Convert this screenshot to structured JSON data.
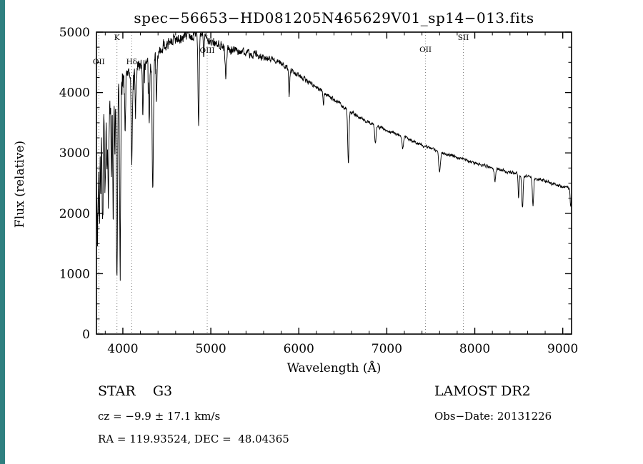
{
  "page": {
    "background": "#ffffff",
    "accent_strip_color": "#2f8080"
  },
  "chart_data": {
    "type": "line",
    "title": "spec−56653−HD081205N465629V01_sp14−013.fits",
    "xlabel": "Wavelength (Å)",
    "ylabel": "Flux (relative)",
    "xlim": [
      3700,
      9100
    ],
    "ylim": [
      0,
      5000
    ],
    "x_ticks": [
      4000,
      5000,
      6000,
      7000,
      8000,
      9000
    ],
    "y_ticks": [
      0,
      1000,
      2000,
      3000,
      4000,
      5000
    ],
    "x_minor_step": 200,
    "y_minor_step": 250,
    "grid": false,
    "legend": "none",
    "line_color": "#000000",
    "marker_line_color": "#787878",
    "step": 3,
    "seed": 20131226,
    "spectral_lines": [
      {
        "label": "OII",
        "wavelength": 3727,
        "label_level": 4470
      },
      {
        "label": "K",
        "wavelength": 3933,
        "label_level": 4870
      },
      {
        "label": "Hδ",
        "wavelength": 4101,
        "label_level": 4470
      },
      {
        "label": "OIII",
        "wavelength": 4959,
        "label_level": 4660
      },
      {
        "label": "OII",
        "wavelength": 7440,
        "label_level": 4670
      },
      {
        "label": "SII",
        "wavelength": 7870,
        "label_level": 4870
      }
    ],
    "continuum": [
      [
        3700,
        2800
      ],
      [
        3720,
        2400
      ],
      [
        3740,
        3100
      ],
      [
        3760,
        3300
      ],
      [
        3780,
        3500
      ],
      [
        3800,
        3600
      ],
      [
        3830,
        3500
      ],
      [
        3860,
        3800
      ],
      [
        3900,
        3900
      ],
      [
        3950,
        4100
      ],
      [
        4000,
        4250
      ],
      [
        4050,
        4300
      ],
      [
        4100,
        4350
      ],
      [
        4150,
        4400
      ],
      [
        4250,
        4450
      ],
      [
        4350,
        4550
      ],
      [
        4450,
        4750
      ],
      [
        4550,
        4850
      ],
      [
        4650,
        4900
      ],
      [
        4750,
        4950
      ],
      [
        4850,
        4980
      ],
      [
        4950,
        4920
      ],
      [
        5050,
        4820
      ],
      [
        5150,
        4750
      ],
      [
        5250,
        4700
      ],
      [
        5350,
        4680
      ],
      [
        5450,
        4650
      ],
      [
        5550,
        4620
      ],
      [
        5650,
        4570
      ],
      [
        5750,
        4520
      ],
      [
        5850,
        4430
      ],
      [
        5950,
        4330
      ],
      [
        6050,
        4230
      ],
      [
        6150,
        4130
      ],
      [
        6250,
        4030
      ],
      [
        6350,
        3930
      ],
      [
        6450,
        3830
      ],
      [
        6550,
        3720
      ],
      [
        6650,
        3620
      ],
      [
        6750,
        3540
      ],
      [
        6850,
        3470
      ],
      [
        7000,
        3380
      ],
      [
        7150,
        3290
      ],
      [
        7300,
        3190
      ],
      [
        7450,
        3100
      ],
      [
        7600,
        3020
      ],
      [
        7750,
        2950
      ],
      [
        7900,
        2880
      ],
      [
        8050,
        2810
      ],
      [
        8200,
        2750
      ],
      [
        8350,
        2700
      ],
      [
        8500,
        2650
      ],
      [
        8650,
        2600
      ],
      [
        8800,
        2530
      ],
      [
        8950,
        2460
      ],
      [
        9050,
        2420
      ],
      [
        9100,
        2400
      ]
    ],
    "absorption_lines": [
      [
        3712,
        900,
        4
      ],
      [
        3734,
        1100,
        4
      ],
      [
        3750,
        800,
        4
      ],
      [
        3770,
        1500,
        5
      ],
      [
        3798,
        1300,
        5
      ],
      [
        3820,
        900,
        4
      ],
      [
        3835,
        1500,
        5
      ],
      [
        3870,
        1200,
        4
      ],
      [
        3889,
        1900,
        5
      ],
      [
        3910,
        1000,
        4
      ],
      [
        3933,
        3100,
        6
      ],
      [
        3969,
        3050,
        6
      ],
      [
        4026,
        900,
        5
      ],
      [
        4101,
        1500,
        7
      ],
      [
        4144,
        700,
        5
      ],
      [
        4227,
        800,
        5
      ],
      [
        4300,
        900,
        6
      ],
      [
        4340,
        2200,
        7
      ],
      [
        4383,
        800,
        5
      ],
      [
        4861,
        1500,
        7
      ],
      [
        4920,
        400,
        5
      ],
      [
        5170,
        450,
        8
      ],
      [
        5890,
        450,
        6
      ],
      [
        6280,
        200,
        5
      ],
      [
        6563,
        900,
        7
      ],
      [
        6870,
        300,
        8
      ],
      [
        7180,
        200,
        8
      ],
      [
        7600,
        330,
        10
      ],
      [
        8230,
        200,
        8
      ],
      [
        8498,
        380,
        6
      ],
      [
        8542,
        560,
        7
      ],
      [
        8662,
        480,
        7
      ],
      [
        9090,
        300,
        6
      ]
    ],
    "noise_profile": [
      [
        3700,
        330
      ],
      [
        3900,
        260
      ],
      [
        4000,
        150
      ],
      [
        4300,
        130
      ],
      [
        4600,
        110
      ],
      [
        5000,
        95
      ],
      [
        5400,
        80
      ],
      [
        5800,
        60
      ],
      [
        6200,
        45
      ],
      [
        6600,
        38
      ],
      [
        7000,
        32
      ],
      [
        7600,
        28
      ],
      [
        8200,
        30
      ],
      [
        8700,
        35
      ],
      [
        9100,
        30
      ]
    ]
  },
  "annotations": {
    "class_label": "STAR    G3",
    "survey": "LAMOST DR2",
    "cz": "cz = −9.9 ± 17.1 km/s",
    "obs_date": "Obs−Date: 20131226",
    "coords": "RA = 119.93524, DEC =  48.04365"
  }
}
